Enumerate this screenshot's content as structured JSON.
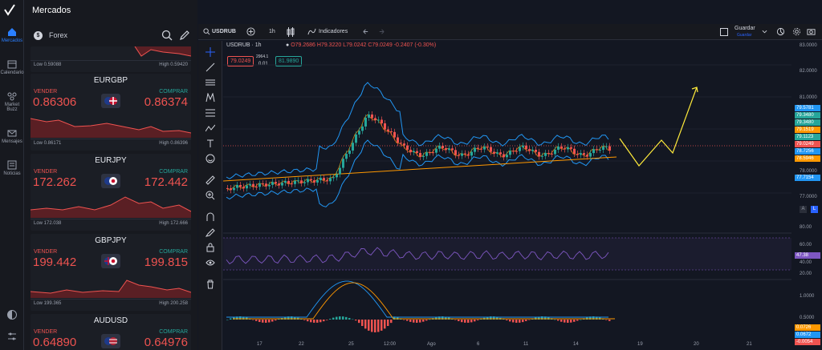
{
  "nav": {
    "items": [
      {
        "label": "Mercados",
        "icon": "home-icon",
        "active": true
      },
      {
        "label": "Calendario",
        "icon": "calendar-icon",
        "active": false
      },
      {
        "label": "Market Buzz",
        "icon": "market-buzz-icon",
        "active": false
      },
      {
        "label": "Mensajes",
        "icon": "mail-icon",
        "active": false
      },
      {
        "label": "Noticias",
        "icon": "news-icon",
        "active": false
      }
    ],
    "bottom_icons": [
      "theme-toggle-icon",
      "settings-sliders-icon"
    ]
  },
  "header": {
    "title": "Mercados"
  },
  "watchlist": {
    "category": "Forex",
    "top_partial": {
      "low": "Low 0.59088",
      "high": "High 0.59420"
    },
    "cards": [
      {
        "symbol": "EURGBP",
        "sell_label": "VENDER",
        "buy_label": "COMPRAR",
        "sell_price": "0.86306",
        "buy_price": "0.86374",
        "low": "Low 0.86171",
        "high": "High 0.86396"
      },
      {
        "symbol": "EURJPY",
        "sell_label": "VENDER",
        "buy_label": "COMPRAR",
        "sell_price": "172.262",
        "buy_price": "172.442",
        "low": "Low 172.038",
        "high": "High 172.666"
      },
      {
        "symbol": "GBPJPY",
        "sell_label": "VENDER",
        "buy_label": "COMPRAR",
        "sell_price": "199.442",
        "buy_price": "199.815",
        "low": "Low 199.365",
        "high": "High 200.258"
      },
      {
        "symbol": "AUDUSD",
        "sell_label": "VENDER",
        "buy_label": "COMPRAR",
        "sell_price": "0.64890",
        "buy_price": "0.64976",
        "low": "",
        "high": ""
      }
    ]
  },
  "toolbar": {
    "symbol": "USDRUB",
    "interval": "1h",
    "indicators": "Indicadores",
    "save_label": "Guardar",
    "save_sub": "Guardar"
  },
  "legend": {
    "title": "USDRUB · 1h",
    "o": "O79.2686",
    "h": "H79.3220",
    "l": "L79.0242",
    "c": "C79.0249",
    "chg": "-0.2407 (-0.30%)",
    "sell_box": "79.0249",
    "spread": "2964.1",
    "step": "0.01",
    "buy_box": "81.9890"
  },
  "price_axis": {
    "ticks": [
      "83.0000",
      "82.0000",
      "81.0000",
      "78.0000",
      "77.0000"
    ],
    "badges": [
      {
        "text": "79.5781",
        "color": "#2196f3"
      },
      {
        "text": "79.3480",
        "color": "#26a69a"
      },
      {
        "text": "79.3480",
        "color": "#26a69a"
      },
      {
        "text": "79.1519",
        "color": "#ff9800"
      },
      {
        "text": "79.1123",
        "color": "#26a69a"
      },
      {
        "text": "79.0249",
        "color": "#ef5350"
      },
      {
        "text": "78.7256",
        "color": "#2196f3"
      },
      {
        "text": "78.5946",
        "color": "#ff9800"
      },
      {
        "text": "77.7154",
        "color": "#2196f3"
      }
    ],
    "rsi_ticks": [
      "80.00",
      "60.00",
      "40.00",
      "20.00"
    ],
    "rsi_badge": "47.38",
    "macd_ticks": [
      "1.0000",
      "0.5000"
    ],
    "macd_badges": [
      {
        "text": "0.0726",
        "color": "#ff9800"
      },
      {
        "text": "0.0672",
        "color": "#2196f3"
      },
      {
        "text": "-0.0054",
        "color": "#ef5350"
      }
    ]
  },
  "x_axis": {
    "labels": [
      "17",
      "22",
      "25",
      "12:00",
      "Ago",
      "6",
      "11",
      "14",
      "19",
      "20",
      "21"
    ]
  },
  "colors": {
    "up": "#26a69a",
    "down": "#ef5350",
    "bb": "#2196f3",
    "ma": "#ff9800",
    "rsi": "#7e57c2",
    "projection": "#ffeb3b"
  }
}
